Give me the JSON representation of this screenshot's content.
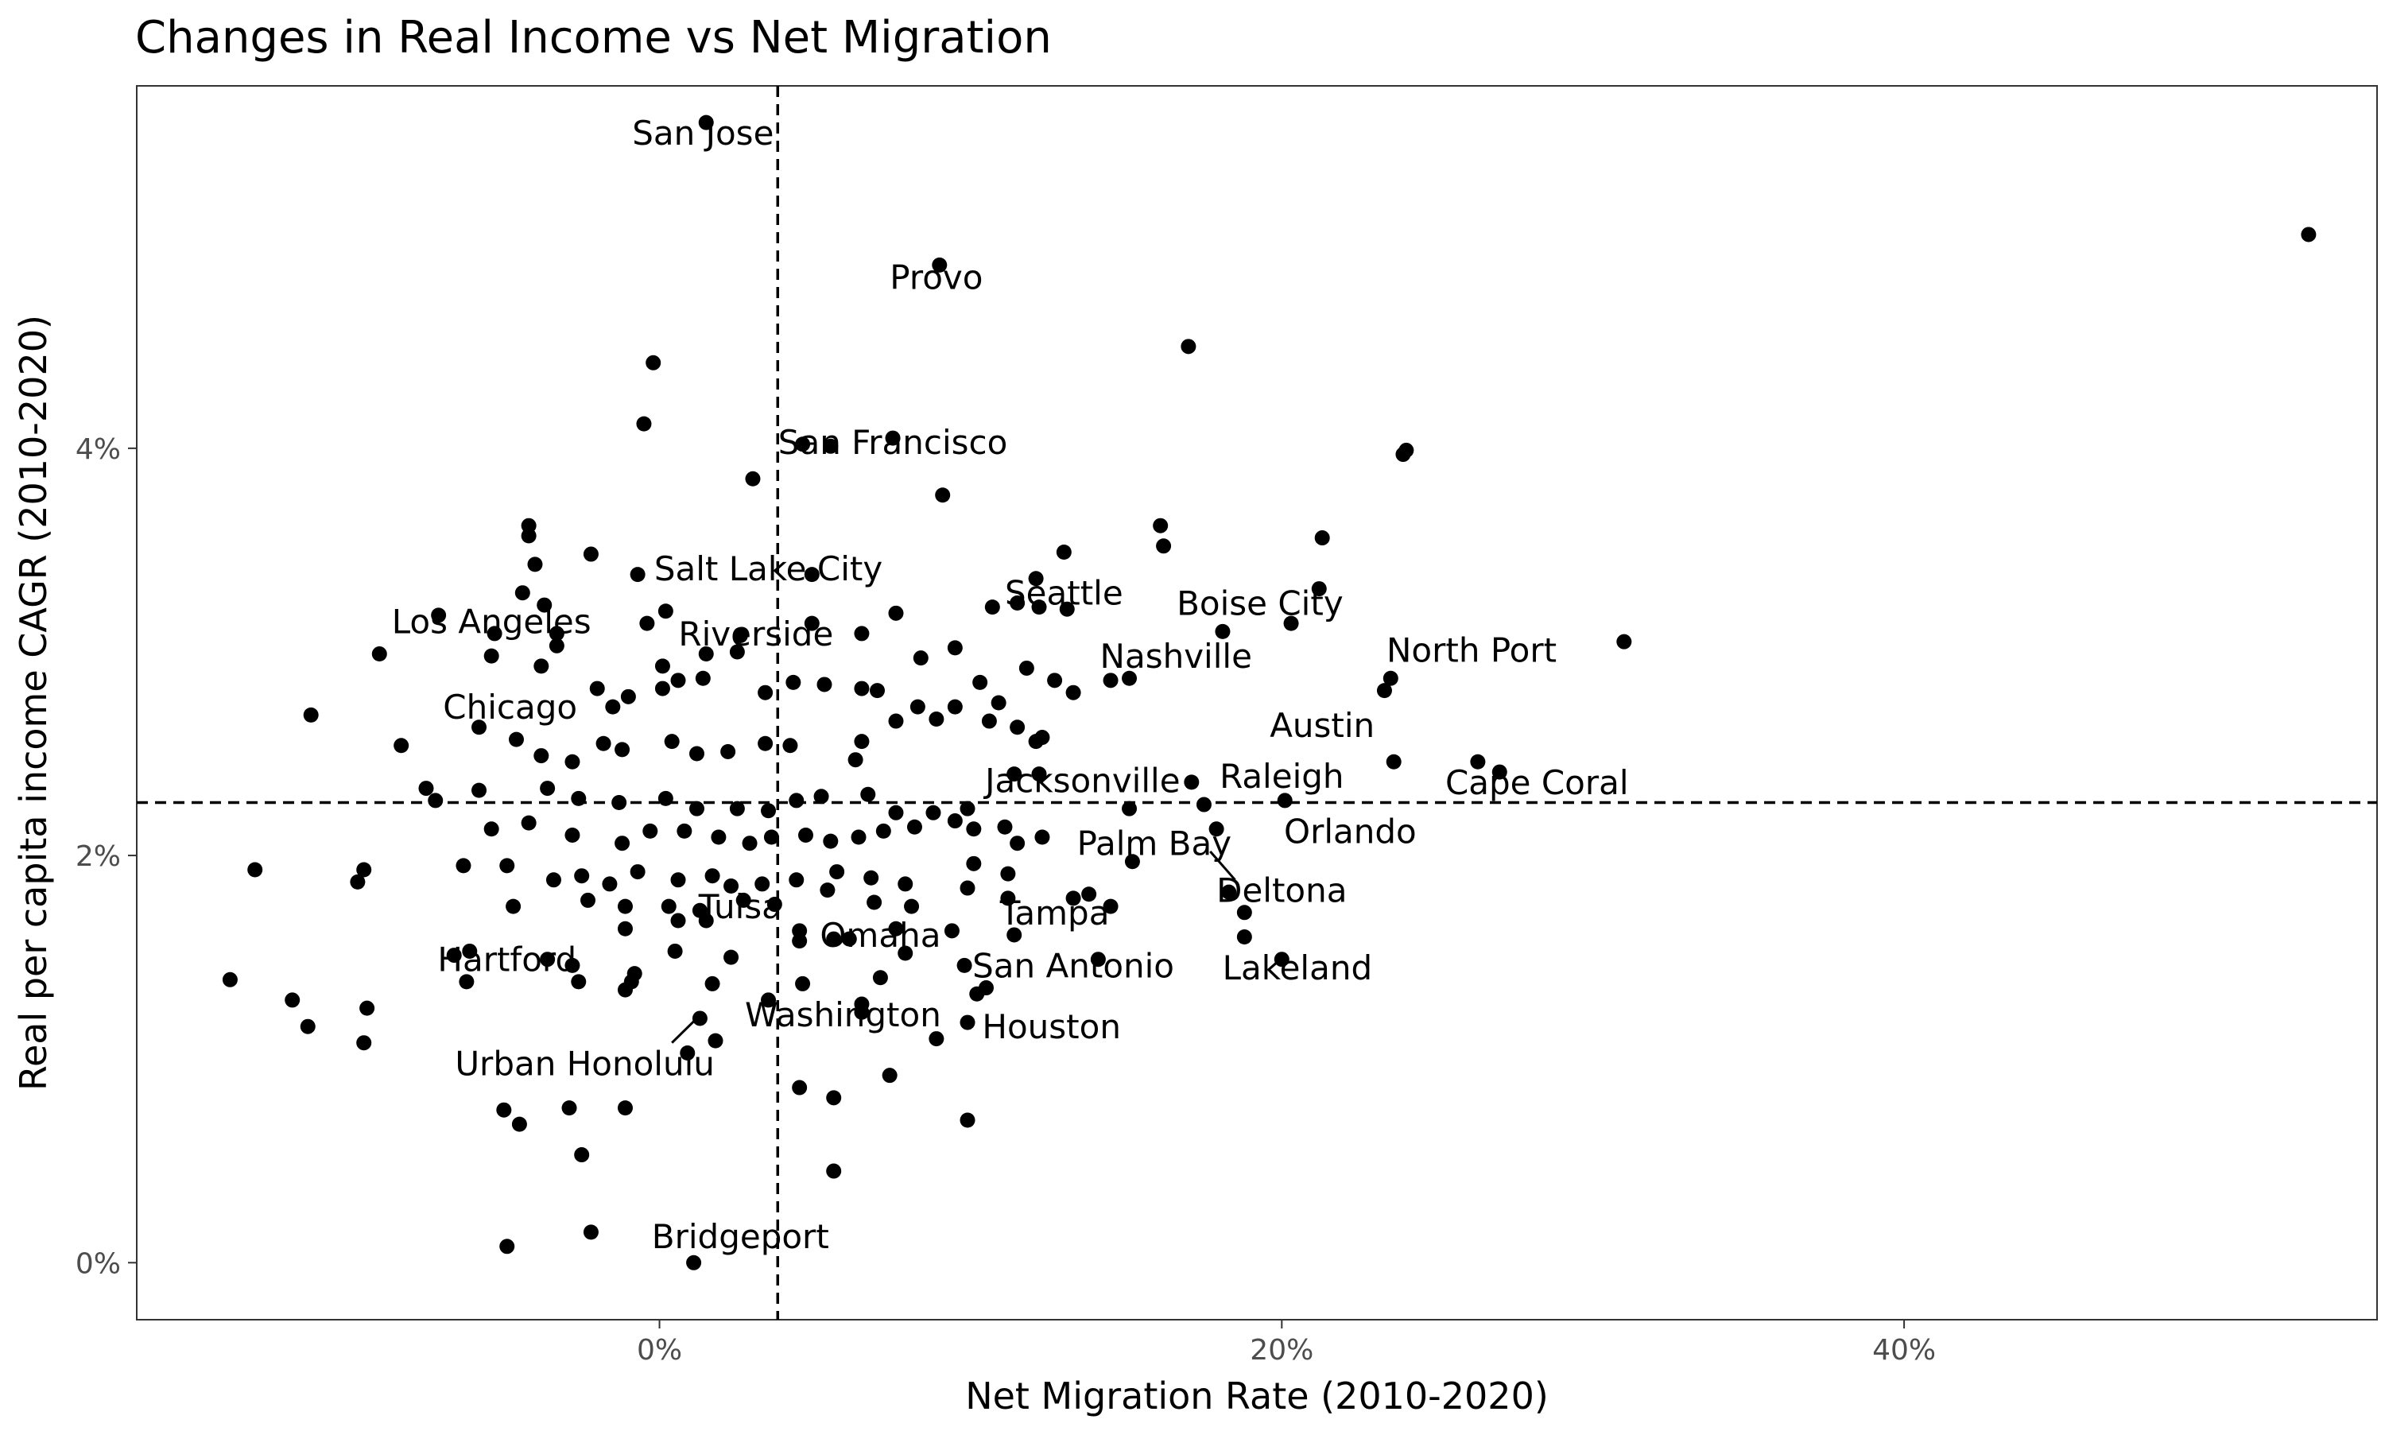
{
  "chart_data": {
    "type": "scatter",
    "title": "Changes in Real Income vs Net Migration",
    "xlabel": "Net Migration Rate (2010-2020)",
    "ylabel": "Real per capita income CAGR (2010-2020)",
    "xlim": [
      -16.8,
      55.2
    ],
    "ylim": [
      -0.28,
      5.78
    ],
    "x_ticks": [
      {
        "value": 0,
        "label": "0%"
      },
      {
        "value": 20,
        "label": "20%"
      },
      {
        "value": 40,
        "label": "40%"
      }
    ],
    "y_ticks": [
      {
        "value": 0,
        "label": "0%"
      },
      {
        "value": 2,
        "label": "2%"
      },
      {
        "value": 4,
        "label": "4%"
      }
    ],
    "reference_lines": {
      "x": 3.8,
      "y": 2.26,
      "style": "dashed"
    },
    "grid": false,
    "labels": [
      {
        "text": "San Jose",
        "x": 1.4,
        "y": 5.55
      },
      {
        "text": "Provo",
        "x": 8.9,
        "y": 4.84
      },
      {
        "text": "San Francisco",
        "x": 7.5,
        "y": 4.03
      },
      {
        "text": "Salt Lake City",
        "x": 3.5,
        "y": 3.41
      },
      {
        "text": "Los Angeles",
        "x": -5.4,
        "y": 3.15
      },
      {
        "text": "Riverside",
        "x": 3.1,
        "y": 3.09
      },
      {
        "text": "Chicago",
        "x": -4.8,
        "y": 2.73
      },
      {
        "text": "Seattle",
        "x": 13,
        "y": 3.29
      },
      {
        "text": "Boise City",
        "x": 19.3,
        "y": 3.24
      },
      {
        "text": "Nashville",
        "x": 16.6,
        "y": 2.98
      },
      {
        "text": "North Port",
        "x": 26.1,
        "y": 3.01
      },
      {
        "text": "Austin",
        "x": 21.3,
        "y": 2.64
      },
      {
        "text": "Jacksonville",
        "x": 13.6,
        "y": 2.37
      },
      {
        "text": "Raleigh",
        "x": 20,
        "y": 2.39
      },
      {
        "text": "Cape Coral",
        "x": 28.2,
        "y": 2.36
      },
      {
        "text": "Orlando",
        "x": 22.2,
        "y": 2.12
      },
      {
        "text": "Palm Bay",
        "x": 15.9,
        "y": 2.06
      },
      {
        "text": "Deltona",
        "x": 20,
        "y": 1.83
      },
      {
        "text": "Tampa",
        "x": 12.7,
        "y": 1.72
      },
      {
        "text": "Tulsa",
        "x": 2.6,
        "y": 1.75
      },
      {
        "text": "Omaha",
        "x": 7.1,
        "y": 1.61
      },
      {
        "text": "Hartford",
        "x": -4.9,
        "y": 1.49
      },
      {
        "text": "San Antonio",
        "x": 13.3,
        "y": 1.46
      },
      {
        "text": "Lakeland",
        "x": 20.5,
        "y": 1.45
      },
      {
        "text": "Washington",
        "x": 5.9,
        "y": 1.22
      },
      {
        "text": "Houston",
        "x": 12.6,
        "y": 1.16
      },
      {
        "text": "Urban Honolulu",
        "x": -2.4,
        "y": 0.98
      },
      {
        "text": "Bridgeport",
        "x": 2.6,
        "y": 0.13
      }
    ],
    "points": [
      [
        1.5,
        5.6
      ],
      [
        9,
        4.9
      ],
      [
        53,
        5.05
      ],
      [
        17,
        4.5
      ],
      [
        -0.2,
        4.42
      ],
      [
        -0.5,
        4.12
      ],
      [
        7.5,
        4.05
      ],
      [
        4.6,
        4.02
      ],
      [
        5.5,
        4.01
      ],
      [
        24,
        3.99
      ],
      [
        23.9,
        3.97
      ],
      [
        3,
        3.85
      ],
      [
        9.1,
        3.77
      ],
      [
        -4.2,
        3.62
      ],
      [
        -4.2,
        3.57
      ],
      [
        16.1,
        3.62
      ],
      [
        16.2,
        3.52
      ],
      [
        21.3,
        3.56
      ],
      [
        13,
        3.49
      ],
      [
        -2.2,
        3.48
      ],
      [
        -4,
        3.43
      ],
      [
        -0.7,
        3.38
      ],
      [
        4.9,
        3.38
      ],
      [
        12.1,
        3.36
      ],
      [
        -4.4,
        3.29
      ],
      [
        21.2,
        3.31
      ],
      [
        -3.7,
        3.23
      ],
      [
        10.7,
        3.22
      ],
      [
        12.2,
        3.22
      ],
      [
        11.5,
        3.24
      ],
      [
        13.1,
        3.21
      ],
      [
        0.2,
        3.2
      ],
      [
        7.6,
        3.19
      ],
      [
        18.1,
        3.1
      ],
      [
        20.3,
        3.14
      ],
      [
        31,
        3.05
      ],
      [
        -7.1,
        3.18
      ],
      [
        -5.3,
        3.09
      ],
      [
        -3.3,
        3.09
      ],
      [
        -0.4,
        3.14
      ],
      [
        2.6,
        3.08
      ],
      [
        4.9,
        3.14
      ],
      [
        6.5,
        3.09
      ],
      [
        -9,
        2.99
      ],
      [
        -5.4,
        2.98
      ],
      [
        -3.3,
        3.03
      ],
      [
        1.5,
        2.99
      ],
      [
        9.5,
        3.02
      ],
      [
        23.5,
        2.87
      ],
      [
        23.3,
        2.81
      ],
      [
        -3.8,
        2.93
      ],
      [
        0.1,
        2.93
      ],
      [
        2.5,
        3
      ],
      [
        8.4,
        2.97
      ],
      [
        11.8,
        2.92
      ],
      [
        14.5,
        2.86
      ],
      [
        15.1,
        2.87
      ],
      [
        12.7,
        2.86
      ],
      [
        13.3,
        2.8
      ],
      [
        -11.2,
        2.69
      ],
      [
        -5.8,
        2.63
      ],
      [
        -2,
        2.82
      ],
      [
        -1,
        2.78
      ],
      [
        -1.5,
        2.73
      ],
      [
        0.1,
        2.82
      ],
      [
        0.6,
        2.86
      ],
      [
        1.4,
        2.87
      ],
      [
        3.4,
        2.8
      ],
      [
        4.3,
        2.85
      ],
      [
        5.3,
        2.84
      ],
      [
        6.5,
        2.82
      ],
      [
        7,
        2.81
      ],
      [
        8.3,
        2.73
      ],
      [
        9.5,
        2.73
      ],
      [
        10.3,
        2.85
      ],
      [
        10.9,
        2.75
      ],
      [
        12.3,
        2.58
      ],
      [
        -8.3,
        2.54
      ],
      [
        -4.6,
        2.57
      ],
      [
        -3.8,
        2.49
      ],
      [
        -2.8,
        2.46
      ],
      [
        -1.8,
        2.55
      ],
      [
        -1.2,
        2.52
      ],
      [
        0.4,
        2.56
      ],
      [
        1.2,
        2.5
      ],
      [
        2.2,
        2.51
      ],
      [
        3.4,
        2.55
      ],
      [
        4.2,
        2.54
      ],
      [
        6.3,
        2.47
      ],
      [
        6.5,
        2.56
      ],
      [
        7.6,
        2.66
      ],
      [
        8.9,
        2.67
      ],
      [
        10.6,
        2.66
      ],
      [
        11.5,
        2.63
      ],
      [
        12.1,
        2.56
      ],
      [
        11.4,
        2.4
      ],
      [
        12.2,
        2.4
      ],
      [
        17.1,
        2.36
      ],
      [
        20.1,
        2.27
      ],
      [
        23.6,
        2.46
      ],
      [
        26.3,
        2.46
      ],
      [
        27,
        2.41
      ],
      [
        -7.5,
        2.33
      ],
      [
        -7.2,
        2.27
      ],
      [
        -5.8,
        2.32
      ],
      [
        -3.6,
        2.33
      ],
      [
        -2.6,
        2.28
      ],
      [
        -1.3,
        2.26
      ],
      [
        0.2,
        2.28
      ],
      [
        1.2,
        2.23
      ],
      [
        2.5,
        2.23
      ],
      [
        3.5,
        2.22
      ],
      [
        4.4,
        2.27
      ],
      [
        5.2,
        2.29
      ],
      [
        6.7,
        2.3
      ],
      [
        7.6,
        2.21
      ],
      [
        8.8,
        2.21
      ],
      [
        9.9,
        2.23
      ],
      [
        11.1,
        2.14
      ],
      [
        15.1,
        2.23
      ],
      [
        17.5,
        2.25
      ],
      [
        17.9,
        2.13
      ],
      [
        -5.4,
        2.13
      ],
      [
        -4.2,
        2.16
      ],
      [
        -2.8,
        2.1
      ],
      [
        -1.2,
        2.06
      ],
      [
        -0.3,
        2.12
      ],
      [
        0.8,
        2.12
      ],
      [
        1.9,
        2.09
      ],
      [
        2.9,
        2.06
      ],
      [
        3.6,
        2.09
      ],
      [
        4.7,
        2.1
      ],
      [
        5.5,
        2.07
      ],
      [
        6.4,
        2.09
      ],
      [
        7.2,
        2.12
      ],
      [
        8.2,
        2.14
      ],
      [
        9.5,
        2.17
      ],
      [
        10.1,
        2.13
      ],
      [
        11.5,
        2.06
      ],
      [
        12.3,
        2.09
      ],
      [
        -13,
        1.93
      ],
      [
        -9.5,
        1.93
      ],
      [
        -6.3,
        1.95
      ],
      [
        -4.9,
        1.95
      ],
      [
        -3.4,
        1.88
      ],
      [
        -2.5,
        1.9
      ],
      [
        -1.6,
        1.86
      ],
      [
        -0.7,
        1.92
      ],
      [
        0.6,
        1.88
      ],
      [
        1.7,
        1.9
      ],
      [
        2.3,
        1.85
      ],
      [
        3.3,
        1.86
      ],
      [
        4.4,
        1.88
      ],
      [
        5.7,
        1.92
      ],
      [
        6.8,
        1.89
      ],
      [
        7.9,
        1.86
      ],
      [
        10.1,
        1.96
      ],
      [
        11.2,
        1.91
      ],
      [
        15.2,
        1.97
      ],
      [
        -9.7,
        1.87
      ],
      [
        -4.7,
        1.75
      ],
      [
        -2.3,
        1.78
      ],
      [
        -1.1,
        1.75
      ],
      [
        0.3,
        1.75
      ],
      [
        1.3,
        1.73
      ],
      [
        2.7,
        1.78
      ],
      [
        3.7,
        1.76
      ],
      [
        5.4,
        1.83
      ],
      [
        6.9,
        1.77
      ],
      [
        8.1,
        1.75
      ],
      [
        9.9,
        1.84
      ],
      [
        11.2,
        1.79
      ],
      [
        13.3,
        1.79
      ],
      [
        14.5,
        1.75
      ],
      [
        18.3,
        1.82
      ],
      [
        18.8,
        1.72
      ],
      [
        -1.1,
        1.64
      ],
      [
        0.6,
        1.68
      ],
      [
        1.5,
        1.68
      ],
      [
        4.5,
        1.63
      ],
      [
        6.1,
        1.59
      ],
      [
        7.6,
        1.64
      ],
      [
        9.4,
        1.63
      ],
      [
        11.4,
        1.61
      ],
      [
        13.8,
        1.81
      ],
      [
        -13.8,
        1.39
      ],
      [
        -11.8,
        1.29
      ],
      [
        -11.3,
        1.16
      ],
      [
        -9.4,
        1.25
      ],
      [
        -9.5,
        1.08
      ],
      [
        -6.6,
        1.51
      ],
      [
        -6.1,
        1.53
      ],
      [
        -6.2,
        1.38
      ],
      [
        -3.6,
        1.49
      ],
      [
        -2.8,
        1.46
      ],
      [
        -2.6,
        1.38
      ],
      [
        -0.8,
        1.42
      ],
      [
        0.5,
        1.53
      ],
      [
        2.3,
        1.5
      ],
      [
        4.5,
        1.58
      ],
      [
        5.6,
        1.59
      ],
      [
        7.9,
        1.52
      ],
      [
        9.8,
        1.46
      ],
      [
        14.1,
        1.49
      ],
      [
        18.8,
        1.6
      ],
      [
        20,
        1.49
      ],
      [
        -1.1,
        1.34
      ],
      [
        1.7,
        1.37
      ],
      [
        3.5,
        1.29
      ],
      [
        4.6,
        1.37
      ],
      [
        6.5,
        1.27
      ],
      [
        7.1,
        1.4
      ],
      [
        10.2,
        1.32
      ],
      [
        10.5,
        1.35
      ],
      [
        -0.9,
        1.38
      ],
      [
        1.3,
        1.2
      ],
      [
        1.8,
        1.09
      ],
      [
        0.9,
        1.03
      ],
      [
        6.5,
        1.23
      ],
      [
        7.4,
        0.92
      ],
      [
        8.9,
        1.1
      ],
      [
        9.9,
        1.18
      ],
      [
        4.5,
        0.86
      ],
      [
        5.6,
        0.81
      ],
      [
        -5,
        0.75
      ],
      [
        -4.5,
        0.68
      ],
      [
        -2.9,
        0.76
      ],
      [
        -1.1,
        0.76
      ],
      [
        9.9,
        0.7
      ],
      [
        -2.5,
        0.53
      ],
      [
        5.6,
        0.45
      ],
      [
        -2.2,
        0.15
      ],
      [
        -4.9,
        0.08
      ],
      [
        1.1,
        0
      ]
    ]
  }
}
